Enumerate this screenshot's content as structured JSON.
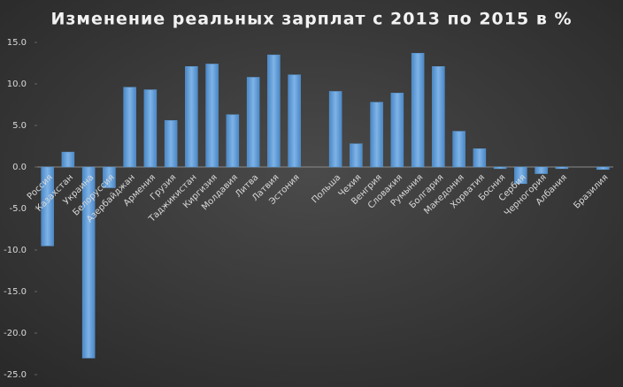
{
  "chart_data": {
    "type": "bar",
    "title": "Изменение реальных зарплат с 2013 по 2015 в %",
    "categories": [
      "Россия",
      "Казахстан",
      "Украина",
      "Белоруссия",
      "Азербайджан",
      "Армения",
      "Грузия",
      "Таджикистан",
      "Киргизия",
      "Молдавия",
      "Литва",
      "Латвия",
      "Эстония",
      null,
      "Польша",
      "Чехия",
      "Венгрия",
      "Словакия",
      "Румыния",
      "Болгария",
      "Македония",
      "Хорватия",
      "Босния",
      "Сербия",
      "Черногория",
      "Албания",
      null,
      "Бразилия"
    ],
    "values": [
      -9.5,
      1.8,
      -23,
      -2.5,
      9.6,
      9.3,
      5.6,
      12.1,
      12.4,
      6.3,
      10.8,
      13.5,
      11.1,
      null,
      9.1,
      2.8,
      7.8,
      8.9,
      13.7,
      12.1,
      4.3,
      2.2,
      -0.2,
      -2.0,
      -0.8,
      -0.2,
      null,
      -0.3
    ],
    "color": "#5b9bd5",
    "ylim": [
      -25,
      15
    ],
    "yticks": [
      {
        "value": 15,
        "label": "15.0"
      },
      {
        "value": 10,
        "label": "10.0"
      },
      {
        "value": 5,
        "label": "5.0"
      },
      {
        "value": 0,
        "label": "0.0"
      },
      {
        "value": -5,
        "label": "-5.0"
      },
      {
        "value": -10,
        "label": "-10.0"
      },
      {
        "value": -15,
        "label": "-15.0"
      },
      {
        "value": -20,
        "label": "-20.0"
      },
      {
        "value": -25,
        "label": "-25.0"
      }
    ],
    "grid": false
  }
}
